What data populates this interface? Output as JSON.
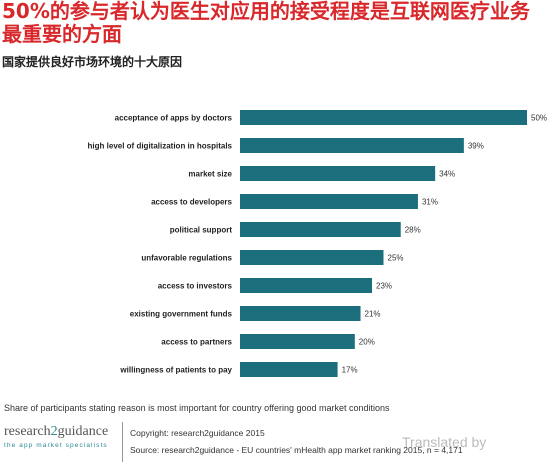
{
  "colors": {
    "title": "#d9282b",
    "bar": "#1b6e7c"
  },
  "chart_data": {
    "type": "bar",
    "orientation": "horizontal",
    "title": [
      "50%的参与者认为医生对应用的接受程度是互联网医疗业务",
      "最重要的方面"
    ],
    "subtitle": "国家提供良好市场环境的十大原因",
    "categories": [
      "acceptance of apps by doctors",
      "high level of digitalization in hospitals",
      "market size",
      "access to developers",
      "political support",
      "unfavorable regulations",
      "access to investors",
      "existing government funds",
      "access to partners",
      "willingness of patients to pay"
    ],
    "values": [
      50,
      39,
      34,
      31,
      28,
      25,
      23,
      21,
      20,
      17
    ],
    "data_labels": [
      "50%",
      "39%",
      "34%",
      "31%",
      "28%",
      "25%",
      "23%",
      "21%",
      "20%",
      "17%"
    ],
    "grid": false,
    "legend": "none",
    "footnote": "Share of participants stating reason is most important for country offering good market conditions"
  },
  "footer": {
    "logo": {
      "name_parts": [
        "research",
        "2",
        "guidance"
      ],
      "tagline": "the app market specialists"
    },
    "copyright": "Copyright: research2guidance 2015",
    "source": "Source: research2guidance - EU countries' mHealth app market ranking 2015, n = 4,171"
  },
  "watermark": "Translated by"
}
